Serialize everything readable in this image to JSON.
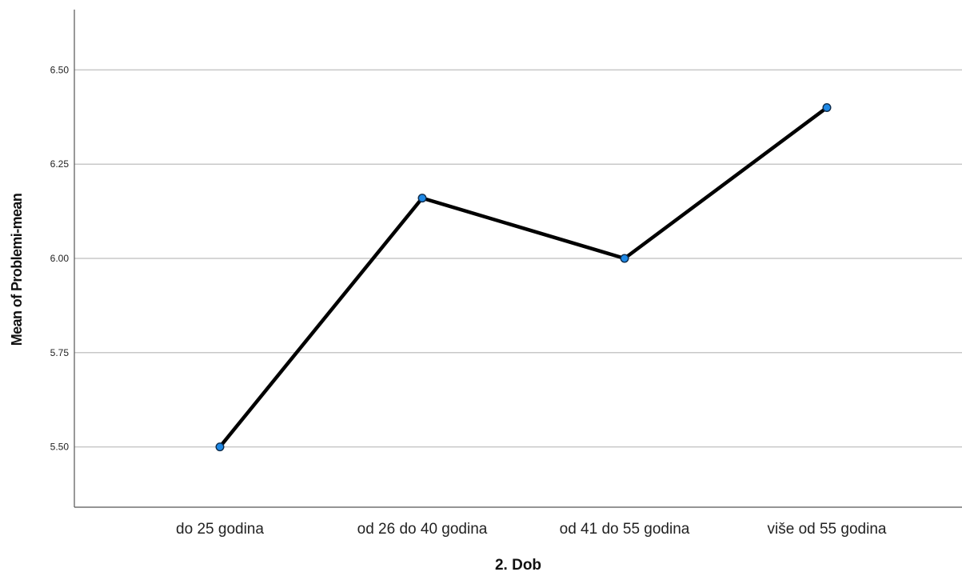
{
  "chart_data": {
    "type": "line",
    "title": "",
    "xlabel": "2. Dob",
    "ylabel": "Mean of Problemi-mean",
    "categories": [
      "do 25 godina",
      "od 26 do 40 godina",
      "od 41 do 55 godina",
      "više od 55 godina"
    ],
    "series": [
      {
        "values": [
          5.5,
          6.16,
          6.0,
          6.4
        ]
      }
    ],
    "ylim": [
      5.34,
      6.66
    ],
    "yticks": [
      5.5,
      5.75,
      6.0,
      6.25,
      6.5
    ],
    "ytick_labels": [
      "5.50",
      "5.75",
      "6.00",
      "6.25",
      "6.50"
    ],
    "grid": true,
    "colors": {
      "line": "#000000",
      "marker_fill": "#1e88e5",
      "marker_stroke": "#0d2b4a",
      "grid": "#c8c8c8",
      "axis": "#555555"
    }
  }
}
